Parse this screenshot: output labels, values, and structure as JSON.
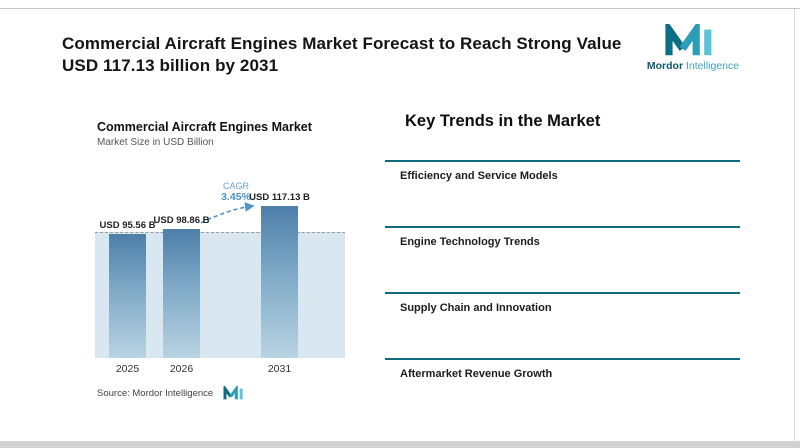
{
  "page": {
    "title": "Commercial Aircraft Engines Market Forecast to Reach Strong Value USD 117.13 billion by 2031"
  },
  "logo": {
    "brand_bold": "Mordor",
    "brand_light": "Intelligence"
  },
  "chart": {
    "title": "Commercial Aircraft Engines Market",
    "subtitle": "Market Size in USD Billion",
    "cagr_label": "CAGR",
    "cagr_value": "3.45%",
    "source": "Source: Mordor Intelligence"
  },
  "chart_data": {
    "type": "bar",
    "title": "Commercial Aircraft Engines Market",
    "ylabel": "Market Size in USD Billion",
    "categories": [
      "2025",
      "2026",
      "2031"
    ],
    "values": [
      95.56,
      98.86,
      117.13
    ],
    "value_labels": [
      "USD 95.56 B",
      "USD 98.86 B",
      "USD 117.13 B"
    ],
    "annotations": [
      "CAGR 3.45%"
    ],
    "reference_line": 95.56,
    "grid": false,
    "legend": false
  },
  "trends": {
    "heading": "Key Trends in the Market",
    "items": [
      "Efficiency and Service Models",
      "Engine Technology Trends",
      "Supply Chain and Innovation",
      "Aftermarket Revenue Growth"
    ]
  },
  "colors": {
    "teal_line": "#0e6a7e",
    "cagr_blue": "#4e91cc",
    "bar_top": "#4d7fa9",
    "bar_bottom": "#b9d3e2",
    "plot_bg": "#d9e7f1",
    "logo_dark": "#0b6e84",
    "logo_light": "#5ac3d8"
  }
}
